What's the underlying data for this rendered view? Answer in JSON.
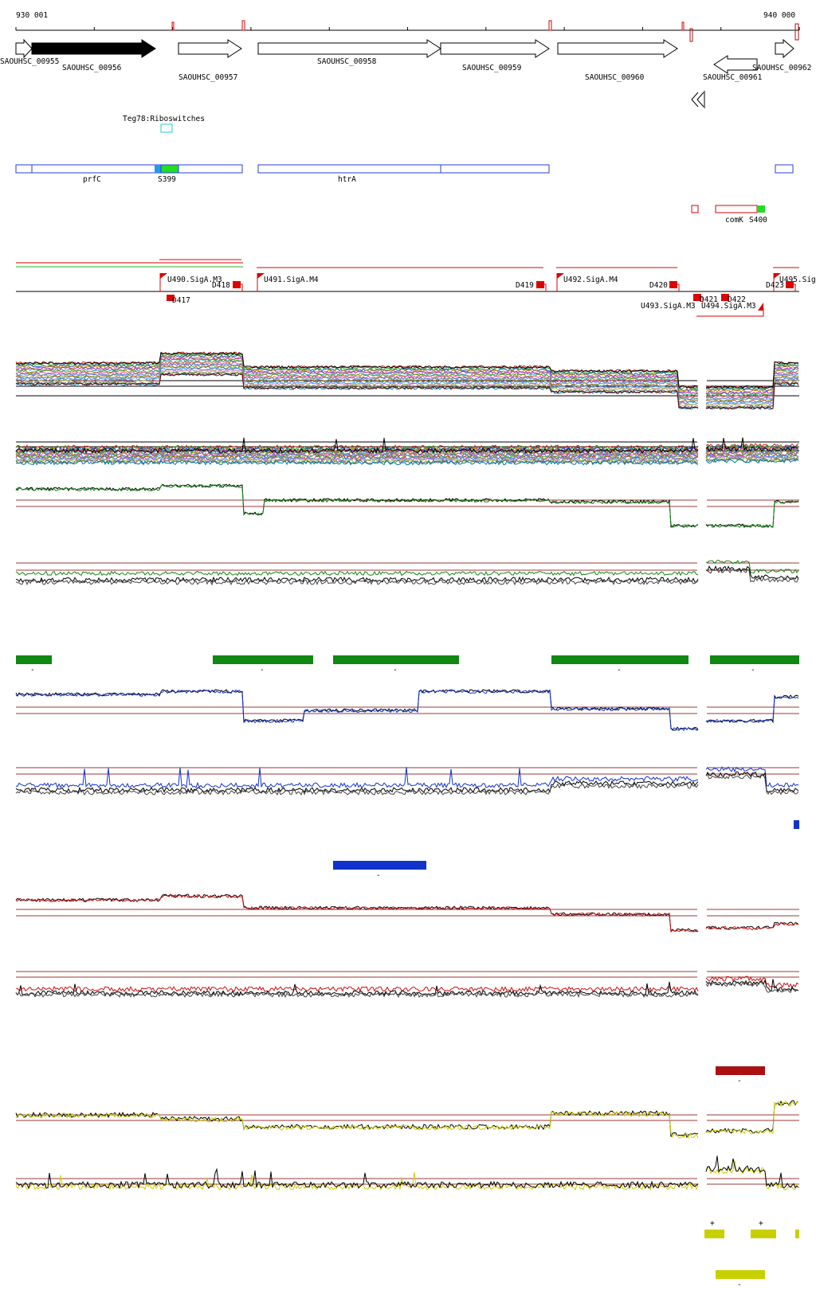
{
  "ruler": {
    "start_label": "930 001",
    "end_label": "940 000",
    "start_bp": 930001,
    "end_bp": 940000
  },
  "colors": {
    "gene_fill": "#000000",
    "gene_outline": "#000000",
    "blue_box": "#2b3fd6",
    "green_box": "#22dd22",
    "riboswitch": "#22cccc",
    "red": "#dd0000",
    "dark_red": "#aa1111",
    "threshold": "#9b3a3a",
    "green_track": "#118811",
    "blue_track": "#1133cc",
    "red_track": "#cc1111",
    "yellow_track": "#c8d000",
    "black_track": "#111111"
  },
  "genes": [
    {
      "id": "g955",
      "label": "SAOUHSC_00955",
      "strand": "+",
      "filled": false
    },
    {
      "id": "g956",
      "label": "SAOUHSC_00956",
      "strand": "+",
      "filled": true
    },
    {
      "id": "g957",
      "label": "SAOUHSC_00957",
      "strand": "+",
      "filled": false
    },
    {
      "id": "g958",
      "label": "SAOUHSC_00958",
      "strand": "+",
      "filled": false
    },
    {
      "id": "g959",
      "label": "SAOUHSC_00959",
      "strand": "+",
      "filled": false
    },
    {
      "id": "g960",
      "label": "SAOUHSC_00960",
      "strand": "+",
      "filled": false
    },
    {
      "id": "g961",
      "label": "SAOUHSC_00961",
      "strand": "-",
      "filled": false
    },
    {
      "id": "g962",
      "label": "SAOUHSC_00962",
      "strand": "+",
      "filled": false
    }
  ],
  "riboswitch": {
    "label": "Teg78:Riboswitches"
  },
  "operons": {
    "prfC": "prfC",
    "S399": "S399",
    "htrA": "htrA",
    "comK": "comK",
    "S400": "S400"
  },
  "transcription": {
    "units": [
      "U490.SigA.M3",
      "U491.SigA.M4",
      "U492.SigA.M4",
      "U493.SigA.M3",
      "U494.SigA.M3",
      "U495.Sig"
    ],
    "downs": [
      "D417",
      "D418",
      "D419",
      "D420",
      "D421",
      "D422",
      "D423"
    ]
  },
  "segment_marks": {
    "green": [
      "-",
      "-",
      "-",
      "-",
      "-"
    ],
    "blue": [
      "-"
    ],
    "red": [
      "-"
    ],
    "yellow_plus": [
      "+",
      "+"
    ],
    "yellow_minus": [
      "-"
    ]
  }
}
